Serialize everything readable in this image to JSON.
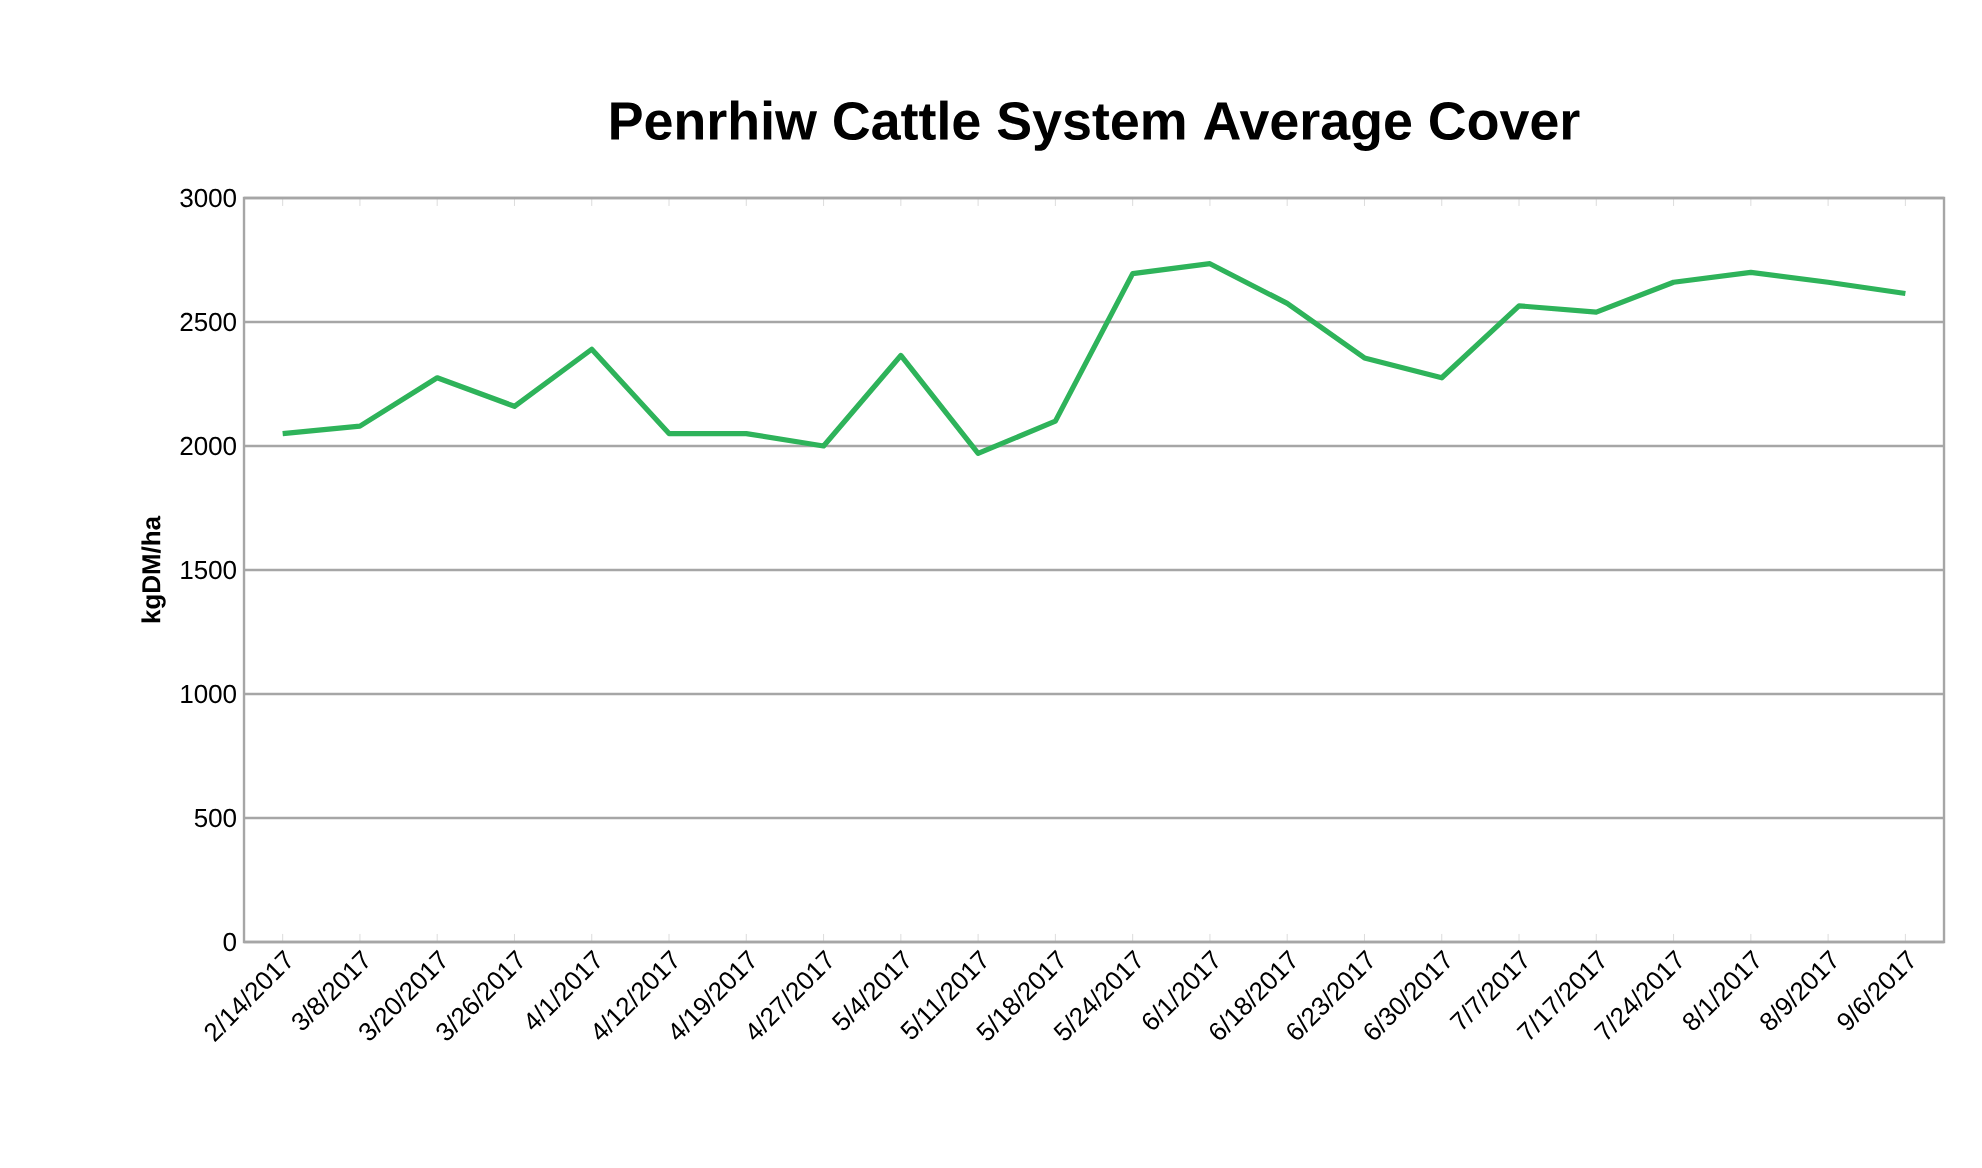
{
  "chart_data": {
    "type": "line",
    "title": "Penrhiw Cattle System Average Cover",
    "ylabel": "kgDM/ha",
    "categories": [
      "2/14/2017",
      "3/8/2017",
      "3/20/2017",
      "3/26/2017",
      "4/1/2017",
      "4/12/2017",
      "4/19/2017",
      "4/27/2017",
      "5/4/2017",
      "5/11/2017",
      "5/18/2017",
      "5/24/2017",
      "6/1/2017",
      "6/18/2017",
      "6/23/2017",
      "6/30/2017",
      "7/7/2017",
      "7/17/2017",
      "7/24/2017",
      "8/1/2017",
      "8/9/2017",
      "9/6/2017"
    ],
    "values": [
      2050,
      2080,
      2275,
      2160,
      2390,
      2050,
      2050,
      2000,
      2365,
      1970,
      2100,
      2695,
      2735,
      2575,
      2355,
      2275,
      2565,
      2540,
      2660,
      2700,
      2660,
      2615
    ],
    "color": "#2eb35a",
    "ylim": [
      0,
      3000
    ],
    "yticks": [
      0,
      500,
      1000,
      1500,
      2000,
      2500,
      3000
    ],
    "grid": "y"
  }
}
